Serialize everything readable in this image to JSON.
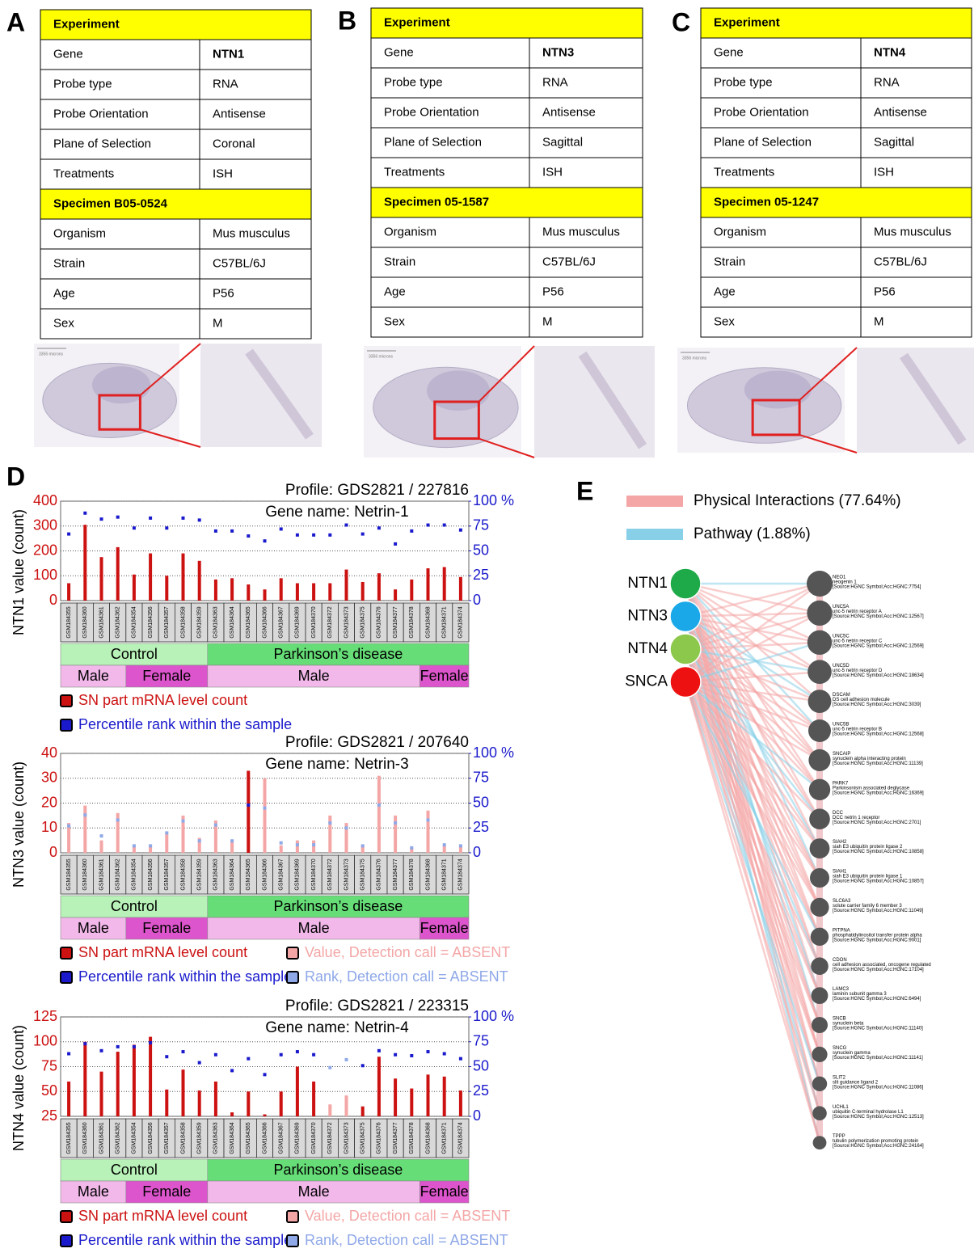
{
  "panel_labels": [
    "A",
    "B",
    "C",
    "D",
    "E"
  ],
  "tables": [
    {
      "header": "Experiment",
      "rows": [
        [
          "Gene",
          "NTN1"
        ],
        [
          "Probe type",
          "RNA"
        ],
        [
          "Probe Orientation",
          "Antisense"
        ],
        [
          "Plane of Selection",
          "Coronal"
        ],
        [
          "Treatments",
          "ISH"
        ]
      ],
      "specimen": "Specimen B05-0524",
      "specimen_rows": [
        [
          "Organism",
          "Mus musculus"
        ],
        [
          "Strain",
          "C57BL/6J"
        ],
        [
          "Age",
          "P56"
        ],
        [
          "Sex",
          "M"
        ]
      ],
      "scale_bar": "3356 microns"
    },
    {
      "header": "Experiment",
      "rows": [
        [
          "Gene",
          "NTN3"
        ],
        [
          "Probe type",
          "RNA"
        ],
        [
          "Probe Orientation",
          "Antisense"
        ],
        [
          "Plane of Selection",
          "Sagittal"
        ],
        [
          "Treatments",
          "ISH"
        ]
      ],
      "specimen": "Specimen 05-1587",
      "specimen_rows": [
        [
          "Organism",
          "Mus musculus"
        ],
        [
          "Strain",
          "C57BL/6J"
        ],
        [
          "Age",
          "P56"
        ],
        [
          "Sex",
          "M"
        ]
      ],
      "scale_bar": "3356 microns"
    },
    {
      "header": "Experiment",
      "rows": [
        [
          "Gene",
          "NTN4"
        ],
        [
          "Probe type",
          "RNA"
        ],
        [
          "Probe Orientation",
          "Antisense"
        ],
        [
          "Plane of Selection",
          "Sagittal"
        ],
        [
          "Treatments",
          "ISH"
        ]
      ],
      "specimen": "Specimen 05-1247",
      "specimen_rows": [
        [
          "Organism",
          "Mus musculus"
        ],
        [
          "Strain",
          "C57BL/6J"
        ],
        [
          "Age",
          "P56"
        ],
        [
          "Sex",
          "M"
        ]
      ],
      "scale_bar": "3356 microns"
    }
  ],
  "chart_data": [
    {
      "type": "bar",
      "title": "Profile: GDS2821 / 227816",
      "subtitle": "Gene name: Netrin-1",
      "y_label": "NTN1  value (count)",
      "categories": [
        "GSM184355",
        "GSM184360",
        "GSM184361",
        "GSM184362",
        "GSM184354",
        "GSM184356",
        "GSM184357",
        "GSM184358",
        "GSM184359",
        "GSM184363",
        "GSM184364",
        "GSM184365",
        "GSM184366",
        "GSM184367",
        "GSM184369",
        "GSM184370",
        "GSM184372",
        "GSM184373",
        "GSM184375",
        "GSM184376",
        "GSM184377",
        "GSM184378",
        "GSM184368",
        "GSM184371",
        "GSM184374"
      ],
      "groups": [
        {
          "label": "Control",
          "span": 9
        },
        {
          "label": "Parkinson’s disease",
          "span": 16
        }
      ],
      "subgroups": [
        {
          "label": "Male",
          "span": 4
        },
        {
          "label": "Female",
          "span": 5
        },
        {
          "label": "Male",
          "span": 13
        },
        {
          "label": "Female",
          "span": 3
        }
      ],
      "series": [
        {
          "name": "SN part mRNA level count",
          "color": "#cc1111",
          "values": [
            70,
            305,
            175,
            215,
            105,
            190,
            100,
            190,
            160,
            85,
            90,
            65,
            45,
            90,
            70,
            70,
            70,
            125,
            75,
            110,
            45,
            85,
            130,
            135,
            95
          ]
        },
        {
          "name": "Percentile rank within the sample",
          "color": "#1a1acc",
          "axis": "y2",
          "values": [
            67,
            88,
            82,
            84,
            73,
            83,
            73,
            83,
            81,
            70,
            70,
            65,
            60,
            72,
            66,
            66,
            66,
            76,
            67,
            73,
            57,
            70,
            76,
            76,
            71
          ]
        }
      ],
      "ylim": [
        0,
        400
      ],
      "yticks": [
        0,
        100,
        200,
        300,
        400
      ],
      "y2lim": [
        0,
        100
      ],
      "y2ticks": [
        0,
        25,
        50,
        75,
        {
          "value": 100,
          "label": "100 %"
        }
      ],
      "grid": true
    },
    {
      "type": "bar",
      "title": "Profile: GDS2821 / 207640",
      "subtitle": "Gene name: Netrin-3",
      "y_label": "NTN3  value (count)",
      "categories": [
        "GSM184355",
        "GSM184360",
        "GSM184361",
        "GSM184362",
        "GSM184354",
        "GSM184356",
        "GSM184357",
        "GSM184358",
        "GSM184359",
        "GSM184363",
        "GSM184364",
        "GSM184365",
        "GSM184366",
        "GSM184367",
        "GSM184369",
        "GSM184370",
        "GSM184372",
        "GSM184373",
        "GSM184375",
        "GSM184376",
        "GSM184377",
        "GSM184378",
        "GSM184368",
        "GSM184371",
        "GSM184374"
      ],
      "groups": [
        {
          "label": "Control",
          "span": 9
        },
        {
          "label": "Parkinson’s disease",
          "span": 16
        }
      ],
      "subgroups": [
        {
          "label": "Male",
          "span": 4
        },
        {
          "label": "Female",
          "span": 5
        },
        {
          "label": "Male",
          "span": 13
        },
        {
          "label": "Female",
          "span": 3
        }
      ],
      "series": [
        {
          "name": "SN part mRNA level count",
          "color": "#cc1111",
          "values": [
            null,
            null,
            null,
            null,
            null,
            null,
            null,
            null,
            null,
            null,
            null,
            33,
            null,
            null,
            null,
            null,
            null,
            null,
            null,
            null,
            null,
            null,
            null,
            null,
            null
          ]
        },
        {
          "name": "Percentile rank within the sample",
          "color": "#1a1acc",
          "axis": "y2",
          "values": [
            null,
            null,
            null,
            null,
            null,
            null,
            null,
            null,
            null,
            null,
            null,
            48,
            null,
            null,
            null,
            null,
            null,
            null,
            null,
            null,
            null,
            null,
            null,
            null,
            null
          ]
        },
        {
          "name": "Value, Detection call = ABSENT",
          "color": "#f4a6a6",
          "values": [
            12,
            19,
            5,
            16,
            3,
            3,
            8,
            15,
            6,
            13,
            5,
            null,
            30,
            3,
            5,
            5,
            15,
            12,
            3,
            31,
            15,
            2,
            17,
            3,
            3
          ]
        },
        {
          "name": "Rank, Detection call = ABSENT",
          "color": "#8fa8e8",
          "axis": "y2",
          "values": [
            27,
            38,
            17,
            33,
            7,
            7,
            20,
            32,
            12,
            28,
            12,
            null,
            45,
            10,
            8,
            8,
            30,
            25,
            7,
            48,
            30,
            5,
            33,
            8,
            7
          ]
        }
      ],
      "ylim": [
        0,
        40
      ],
      "yticks": [
        0,
        10,
        20,
        30,
        40
      ],
      "y2lim": [
        0,
        100
      ],
      "y2ticks": [
        0,
        25,
        50,
        75,
        {
          "value": 100,
          "label": "100 %"
        }
      ],
      "grid": true
    },
    {
      "type": "bar",
      "title": "Profile: GDS2821 / 223315",
      "subtitle": "Gene name: Netrin-4",
      "y_label": "NTN4  value (count)",
      "categories": [
        "GSM184355",
        "GSM184360",
        "GSM184361",
        "GSM184362",
        "GSM184354",
        "GSM184356",
        "GSM184357",
        "GSM184358",
        "GSM184359",
        "GSM184363",
        "GSM184364",
        "GSM184365",
        "GSM184366",
        "GSM184367",
        "GSM184369",
        "GSM184370",
        "GSM184372",
        "GSM184373",
        "GSM184375",
        "GSM184376",
        "GSM184377",
        "GSM184378",
        "GSM184368",
        "GSM184371",
        "GSM184374"
      ],
      "groups": [
        {
          "label": "Control",
          "span": 9
        },
        {
          "label": "Parkinson’s disease",
          "span": 16
        }
      ],
      "subgroups": [
        {
          "label": "Male",
          "span": 4
        },
        {
          "label": "Female",
          "span": 5
        },
        {
          "label": "Male",
          "span": 13
        },
        {
          "label": "Female",
          "span": 3
        }
      ],
      "series": [
        {
          "name": "SN part mRNA level count",
          "color": "#cc1111",
          "values": [
            60,
            100,
            70,
            90,
            97,
            105,
            52,
            72,
            51,
            60,
            29,
            50,
            27,
            50,
            75,
            60,
            null,
            null,
            35,
            85,
            63,
            53,
            67,
            65,
            51
          ]
        },
        {
          "name": "Percentile rank within the sample",
          "color": "#1a1acc",
          "axis": "y2",
          "values": [
            63,
            73,
            66,
            70,
            70,
            74,
            60,
            65,
            54,
            62,
            46,
            58,
            42,
            62,
            65,
            62,
            null,
            null,
            51,
            66,
            62,
            61,
            65,
            63,
            58
          ]
        },
        {
          "name": "Value, Detection call = ABSENT",
          "color": "#f4a6a6",
          "values": [
            null,
            null,
            null,
            null,
            null,
            null,
            null,
            null,
            null,
            null,
            null,
            null,
            null,
            null,
            null,
            null,
            37,
            46,
            null,
            null,
            null,
            null,
            null,
            null,
            null
          ]
        },
        {
          "name": "Rank, Detection call = ABSENT",
          "color": "#8fa8e8",
          "axis": "y2",
          "values": [
            null,
            null,
            null,
            null,
            null,
            null,
            null,
            null,
            null,
            null,
            null,
            null,
            null,
            null,
            null,
            null,
            49,
            57,
            null,
            null,
            null,
            null,
            null,
            null,
            null
          ]
        }
      ],
      "ylim": [
        25,
        125
      ],
      "yticks": [
        25,
        50,
        75,
        100,
        125
      ],
      "y2lim": [
        0,
        100
      ],
      "y2ticks": [
        0,
        25,
        50,
        75,
        {
          "value": 100,
          "label": "100 %"
        }
      ],
      "grid": true
    }
  ],
  "network": {
    "legend": [
      {
        "name": "Physical Interactions (77.64%)",
        "color": "#f4a6a6"
      },
      {
        "name": "Pathway (1.88%)",
        "color": "#88cfe8"
      }
    ],
    "query_nodes": [
      {
        "label": "NTN1",
        "color": "#1faa4a"
      },
      {
        "label": "NTN3",
        "color": "#1aa8e8"
      },
      {
        "label": "NTN4",
        "color": "#8cc84b"
      },
      {
        "label": "SNCA",
        "color": "#ee1111"
      }
    ],
    "targets": [
      {
        "name": "NEO1",
        "description": "neogenin 1",
        "source": "[Source:HGNC Symbol;Acc:HGNC:7754]"
      },
      {
        "name": "UNC5A",
        "description": "unc-5 netrin receptor A",
        "source": "[Source:HGNC Symbol;Acc:HGNC:12567]"
      },
      {
        "name": "UNC5C",
        "description": "unc-5 netrin receptor C",
        "source": "[Source:HGNC Symbol;Acc:HGNC:12569]"
      },
      {
        "name": "UNC5D",
        "description": "unc-5 netrin receptor D",
        "source": "[Source:HGNC Symbol;Acc:HGNC:18634]"
      },
      {
        "name": "DSCAM",
        "description": "DS cell adhesion molecule",
        "source": "[Source:HGNC Symbol;Acc:HGNC:3039]"
      },
      {
        "name": "UNC5B",
        "description": "unc-5 netrin receptor B",
        "source": "[Source:HGNC Symbol;Acc:HGNC:12568]"
      },
      {
        "name": "SNCAIP",
        "description": "synuclein alpha interacting protein",
        "source": "[Source:HGNC Symbol;Acc:HGNC:11139]"
      },
      {
        "name": "PARK7",
        "description": "Parkinsonism associated deglycase",
        "source": "[Source:HGNC Symbol;Acc:HGNC:16369]"
      },
      {
        "name": "DCC",
        "description": "DCC netrin 1 receptor",
        "source": "[Source:HGNC Symbol;Acc:HGNC:2701]"
      },
      {
        "name": "SIAH2",
        "description": "siah E3 ubiquitin protein ligase 2",
        "source": "[Source:HGNC Symbol;Acc:HGNC:10858]"
      },
      {
        "name": "SIAH1",
        "description": "siah E3 ubiquitin protein ligase 1",
        "source": "[Source:HGNC Symbol;Acc:HGNC:10857]"
      },
      {
        "name": "SLC6A3",
        "description": "solute carrier family 6 member 3",
        "source": "[Source:HGNC Symbol;Acc:HGNC:11049]"
      },
      {
        "name": "PITPNA",
        "description": "phosphatidylinositol transfer protein alpha",
        "source": "[Source:HGNC Symbol;Acc:HGNC:9001]"
      },
      {
        "name": "CDON",
        "description": "cell adhesion associated, oncogene regulated",
        "source": "[Source:HGNC Symbol;Acc:HGNC:17104]"
      },
      {
        "name": "LAMC3",
        "description": "laminin subunit gamma 3",
        "source": "[Source:HGNC Symbol;Acc:HGNC:6494]"
      },
      {
        "name": "SNCB",
        "description": "synuclein beta",
        "source": "[Source:HGNC Symbol;Acc:HGNC:11140]"
      },
      {
        "name": "SNCG",
        "description": "synuclein gamma",
        "source": "[Source:HGNC Symbol;Acc:HGNC:11141]"
      },
      {
        "name": "SLIT2",
        "description": "slit guidance ligand 2",
        "source": "[Source:HGNC Symbol;Acc:HGNC:11086]"
      },
      {
        "name": "UCHL1",
        "description": "ubiquitin C-terminal hydrolase L1",
        "source": "[Source:HGNC Symbol;Acc:HGNC:12513]"
      },
      {
        "name": "TPPP",
        "description": "tubulin polymerization promoting protein",
        "source": "[Source:HGNC Symbol;Acc:HGNC:24164]"
      }
    ]
  }
}
